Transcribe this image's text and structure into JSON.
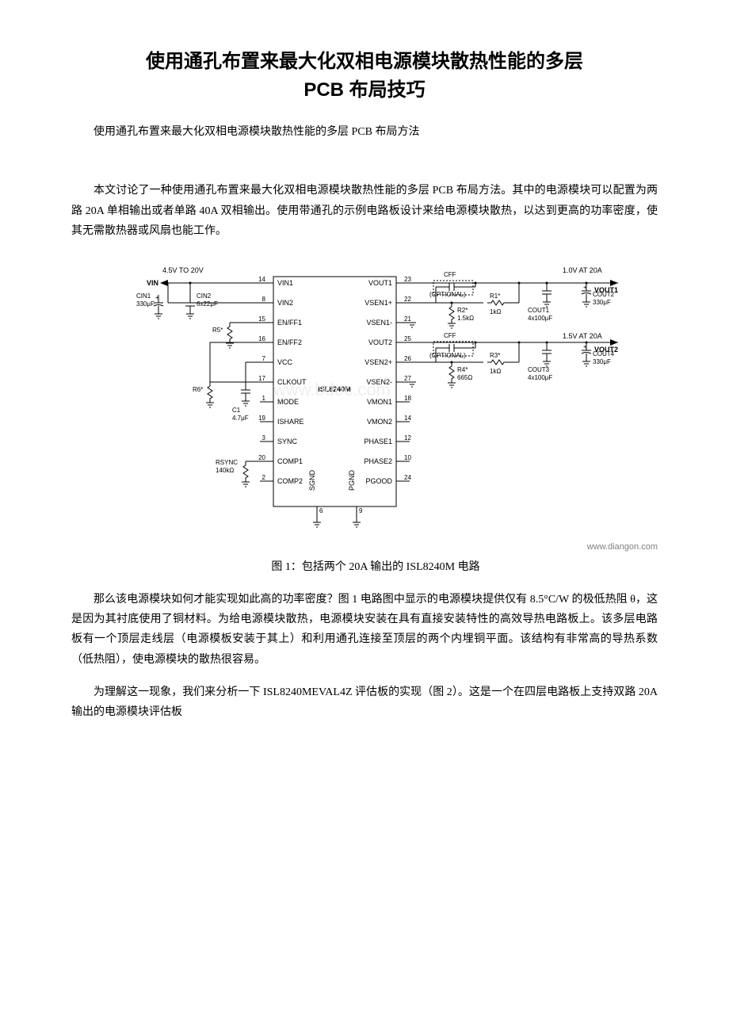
{
  "title_line1": "使用通孔布置来最大化双相电源模块散热性能的多层",
  "title_line2": "PCB 布局技巧",
  "subtitle": "使用通孔布置来最大化双相电源模块散热性能的多层 PCB 布局方法",
  "para1": "本文讨论了一种使用通孔布置来最大化双相电源模块散热性能的多层 PCB 布局方法。其中的电源模块可以配置为两路 20A 单相输出或者单路 40A 双相输出。使用带通孔的示例电路板设计来给电源模块散热，以达到更高的功率密度，使其无需散热器或风扇也能工作。",
  "caption1": "图 1：包括两个 20A 输出的 ISL8240M 电路",
  "para2": "那么该电源模块如何才能实现如此高的功率密度？图 1 电路图中显示的电源模块提供仅有 8.5°C/W 的极低热阻 θ，这是因为其衬底使用了铜材料。为给电源模块散热，电源模块安装在具有直接安装特性的高效导热电路板上。该多层电路板有一个顶层走线层（电源模板安装于其上）和利用通孔连接至顶层的两个内埋铜平面。该结构有非常高的导热系数（低热阻），使电源模块的散热很容易。",
  "para3": "为理解这一现象，我们来分析一下 ISL8240MEVAL4Z 评估板的实现（图 2）。这是一个在四层电路板上支持双路 20A 输出的电源模块评估板",
  "watermark_url": "www.diangon.com",
  "schematic": {
    "vin_label": "4.5V TO 20V",
    "vin_arrow": "VIN",
    "cin1_label": "CIN1",
    "cin1_val": "330μF",
    "cin2_label": "CIN2",
    "cin2_val": "6x22μF",
    "r5_label": "R5*",
    "r6_label": "R6*",
    "c1_label": "C1",
    "c1_val": "4.7μF",
    "rsync_label": "RSYNC",
    "rsync_val": "140kΩ",
    "chip_name": "ISL8240M",
    "vout1_label": "1.0V AT 20A",
    "vout1_arrow": "VOUT1",
    "vout2_label": "1.5V AT 20A",
    "vout2_arrow": "VOUT2",
    "cff_label": "CFF",
    "cff_optional": "(OPTIONAL)",
    "r1_label": "R1*",
    "r1_val": "1kΩ",
    "r2_label": "R2*",
    "r2_val": "1.5kΩ",
    "r3_label": "R3*",
    "r3_val": "1kΩ",
    "r4_label": "R4*",
    "r4_val": "665Ω",
    "cout1_label": "COUT1",
    "cout1_val": "4x100μF",
    "cout2_label": "COUT2",
    "cout2_val": "330μF",
    "cout3_label": "COUT3",
    "cout3_val": "4x100μF",
    "cout4_label": "COUT4",
    "cout4_val": "330μF",
    "pins_left": [
      {
        "num": "14",
        "name": "VIN1"
      },
      {
        "num": "8",
        "name": "VIN2"
      },
      {
        "num": "15",
        "name": "EN/FF1"
      },
      {
        "num": "16",
        "name": "EN/FF2"
      },
      {
        "num": "7",
        "name": "VCC"
      },
      {
        "num": "17",
        "name": "CLKOUT"
      },
      {
        "num": "1",
        "name": "MODE"
      },
      {
        "num": "19",
        "name": "ISHARE"
      },
      {
        "num": "3",
        "name": "SYNC"
      },
      {
        "num": "20",
        "name": "COMP1"
      },
      {
        "num": "2",
        "name": "COMP2"
      }
    ],
    "pins_right": [
      {
        "num": "23",
        "name": "VOUT1"
      },
      {
        "num": "22",
        "name": "VSEN1+"
      },
      {
        "num": "21",
        "name": "VSEN1-"
      },
      {
        "num": "25",
        "name": "VOUT2"
      },
      {
        "num": "26",
        "name": "VSEN2+"
      },
      {
        "num": "27",
        "name": "VSEN2-"
      },
      {
        "num": "18",
        "name": "VMON1"
      },
      {
        "num": "14",
        "name": "VMON2"
      },
      {
        "num": "12",
        "name": "PHASE1"
      },
      {
        "num": "10",
        "name": "PHASE2"
      },
      {
        "num": "24",
        "name": "PGOOD"
      }
    ],
    "pins_bottom": [
      {
        "num": "6",
        "name": "SGND"
      },
      {
        "num": "9",
        "name": "PGND"
      }
    ],
    "watermark": "www.bdoc.com"
  }
}
